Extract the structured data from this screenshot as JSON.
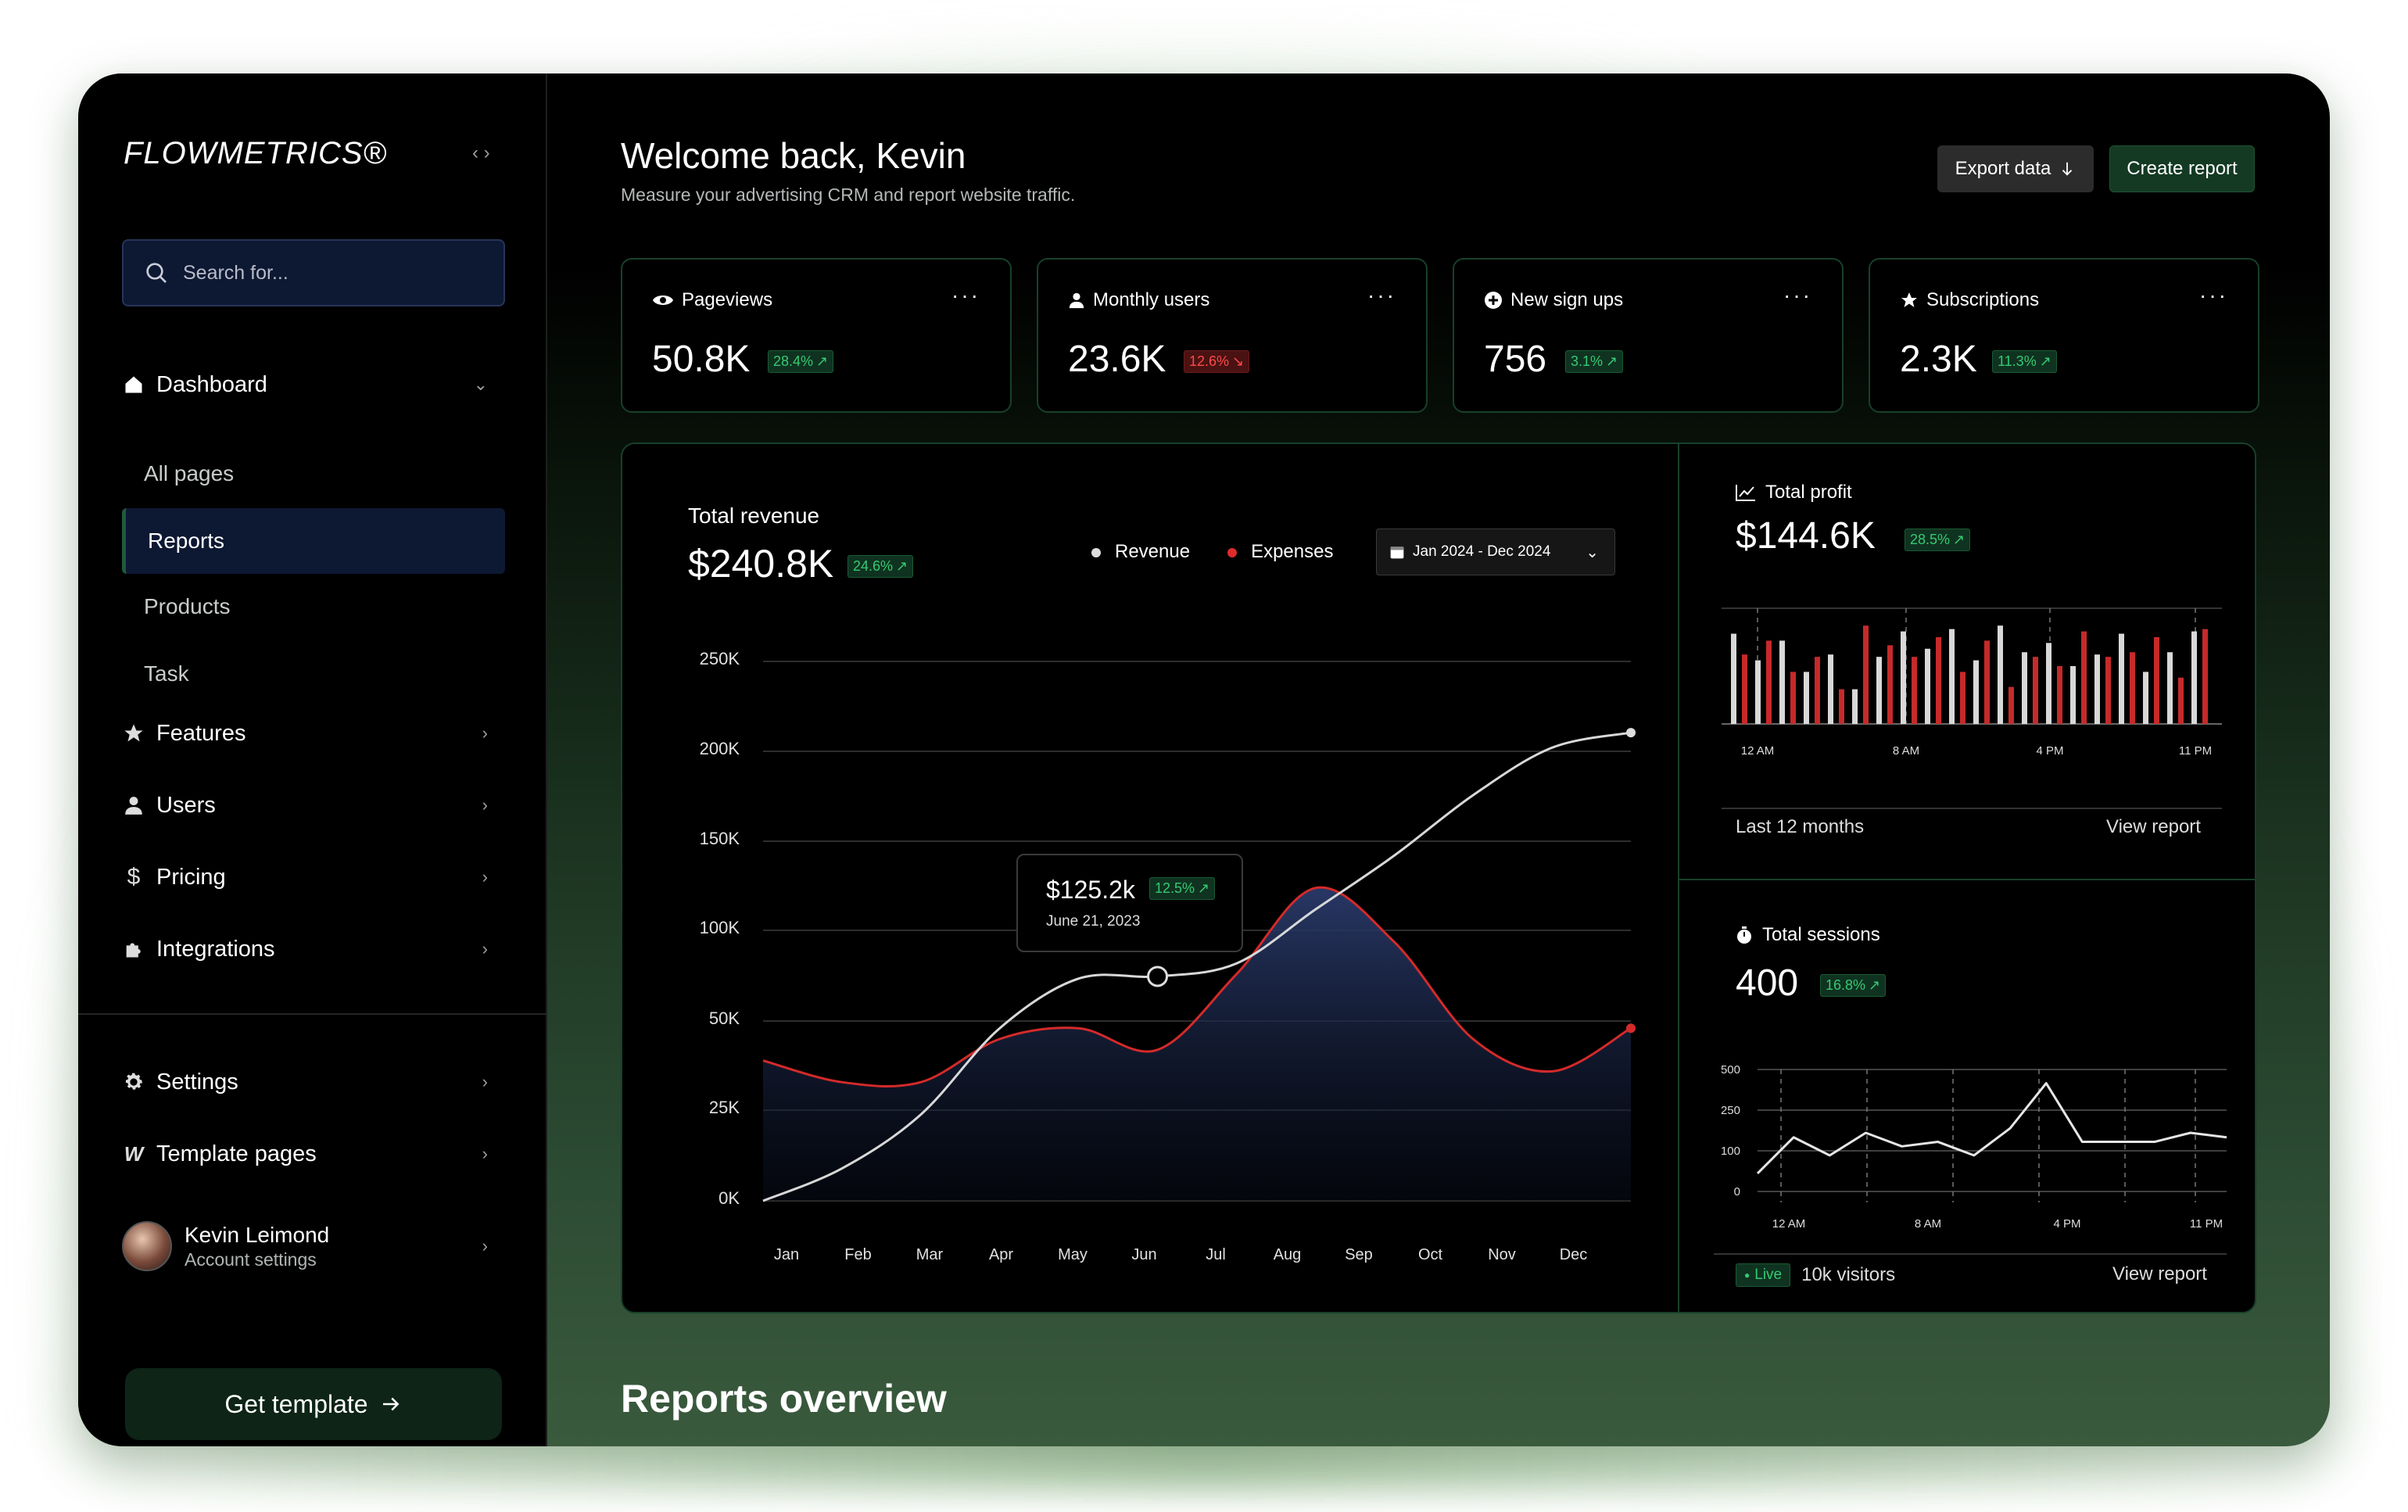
{
  "app": {
    "logo": "FLOWMETRICS®"
  },
  "sidebar": {
    "search_placeholder": "Search for...",
    "dashboard": "Dashboard",
    "sub_items": [
      "All pages",
      "Reports",
      "Products",
      "Task"
    ],
    "items": [
      {
        "label": "Features",
        "icon": "star-icon"
      },
      {
        "label": "Users",
        "icon": "user-icon"
      },
      {
        "label": "Pricing",
        "icon": "dollar-icon"
      },
      {
        "label": "Integrations",
        "icon": "puzzle-icon"
      }
    ],
    "bottom_items": [
      {
        "label": "Settings",
        "icon": "gear-icon"
      },
      {
        "label": "Template pages",
        "icon": "webflow-icon"
      }
    ],
    "profile": {
      "name": "Kevin Leimond",
      "subtitle": "Account settings"
    },
    "cta": "Get template"
  },
  "header": {
    "title": "Welcome back, Kevin",
    "subtitle": "Measure your advertising CRM and report website traffic.",
    "export_label": "Export data",
    "create_label": "Create report"
  },
  "stats": [
    {
      "label": "Pageviews",
      "value": "50.8K",
      "change": "28.4%",
      "trend": "up",
      "icon": "eye-icon"
    },
    {
      "label": "Monthly users",
      "value": "23.6K",
      "change": "12.6%",
      "trend": "down",
      "icon": "user-icon"
    },
    {
      "label": "New sign ups",
      "value": "756",
      "change": "3.1%",
      "trend": "up",
      "icon": "plus-circle-icon"
    },
    {
      "label": "Subscriptions",
      "value": "2.3K",
      "change": "11.3%",
      "trend": "up",
      "icon": "star-icon"
    }
  ],
  "revenue": {
    "label": "Total revenue",
    "value": "$240.8K",
    "change": "24.6%",
    "legend": [
      "Revenue",
      "Expenses"
    ],
    "date_range": "Jan 2024 - Dec 2024",
    "tooltip": {
      "value": "$125.2k",
      "change": "12.5%",
      "date": "June 21, 2023"
    }
  },
  "chart_data": [
    {
      "type": "area",
      "categories": [
        "Jan",
        "Feb",
        "Mar",
        "Apr",
        "May",
        "Jun",
        "Jul",
        "Aug",
        "Sep",
        "Oct",
        "Nov",
        "Dec"
      ],
      "y_ticks": [
        "250K",
        "200K",
        "150K",
        "100K",
        "50K",
        "25K",
        "0K"
      ],
      "series": [
        {
          "name": "Revenue",
          "values": [
            0,
            15,
            40,
            80,
            103,
            104,
            110,
            135,
            160,
            188,
            210,
            217
          ]
        },
        {
          "name": "Expenses",
          "values": [
            65,
            55,
            55,
            75,
            80,
            70,
            105,
            145,
            120,
            75,
            60,
            80
          ]
        }
      ]
    },
    {
      "type": "bar",
      "title": "Total profit",
      "x_ticks": [
        "12 AM",
        "8 AM",
        "4 PM",
        "11 PM"
      ],
      "series": [
        {
          "values": [
            0.78,
            0.55,
            0.72,
            0.45,
            0.6,
            0.3,
            0.58,
            0.8,
            0.65,
            0.82,
            0.55,
            0.85,
            0.62,
            0.7,
            0.5,
            0.6,
            0.78,
            0.45,
            0.62,
            0.8
          ]
        },
        {
          "values": [
            0.6,
            0.72,
            0.45,
            0.58,
            0.3,
            0.85,
            0.68,
            0.58,
            0.75,
            0.45,
            0.72,
            0.32,
            0.58,
            0.5,
            0.8,
            0.58,
            0.62,
            0.75,
            0.4,
            0.82
          ]
        }
      ]
    },
    {
      "type": "line",
      "title": "Total sessions",
      "y_ticks": [
        "500",
        "250",
        "100",
        "0"
      ],
      "x_ticks": [
        "12 AM",
        "8 AM",
        "4 PM",
        "11 PM"
      ],
      "series": [
        {
          "values": [
            20,
            60,
            40,
            65,
            50,
            55,
            40,
            70,
            120,
            55,
            55,
            55,
            65,
            60
          ]
        }
      ]
    }
  ],
  "profit": {
    "label": "Total profit",
    "value": "$144.6K",
    "change": "28.5%",
    "footer_left": "Last 12 months",
    "footer_right": "View report"
  },
  "sessions": {
    "label": "Total sessions",
    "value": "400",
    "change": "16.8%",
    "live": "Live",
    "visitors": "10k visitors",
    "footer_right": "View report"
  },
  "section_title": "Reports overview",
  "colors": {
    "accent_green": "#37c873",
    "accent_red": "#e02b2b",
    "panel_border": "#18402a",
    "active_nav": "#0d1833"
  }
}
